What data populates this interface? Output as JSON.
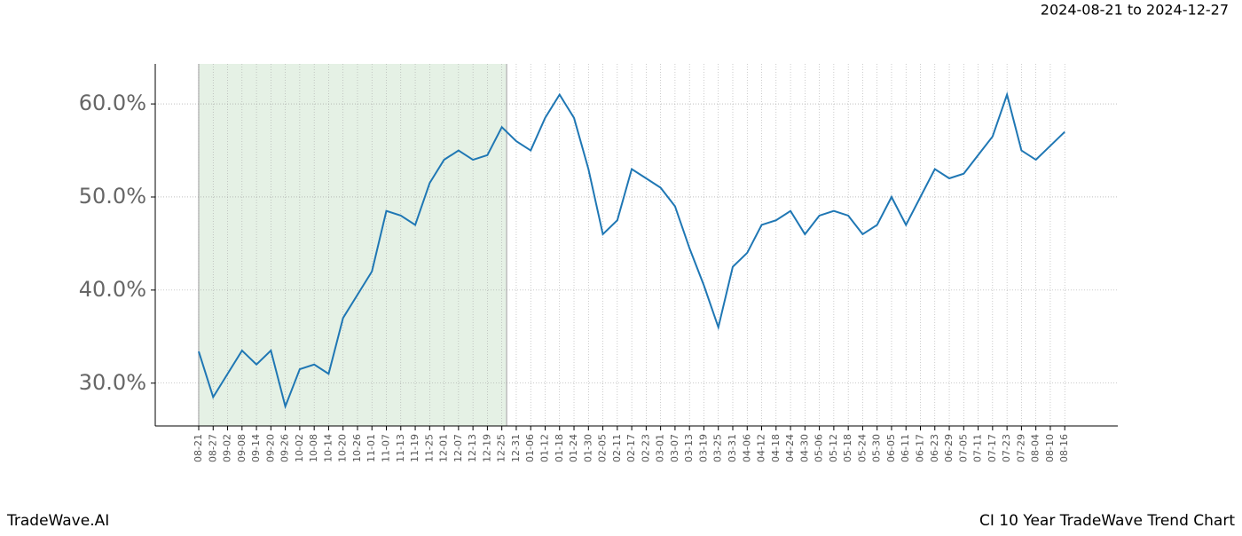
{
  "chart_data": {
    "type": "line",
    "title": "CI 10 Year TradeWave Trend Chart",
    "brand": "TradeWave.AI",
    "date_range": "2024-08-21 to 2024-12-27",
    "categories": [
      "08-21",
      "08-27",
      "09-02",
      "09-08",
      "09-14",
      "09-20",
      "09-26",
      "10-02",
      "10-08",
      "10-14",
      "10-20",
      "10-26",
      "11-01",
      "11-07",
      "11-13",
      "11-19",
      "11-25",
      "12-01",
      "12-07",
      "12-13",
      "12-19",
      "12-25",
      "12-31",
      "01-06",
      "01-12",
      "01-18",
      "01-24",
      "01-30",
      "02-05",
      "02-11",
      "02-17",
      "02-23",
      "03-01",
      "03-07",
      "03-13",
      "03-19",
      "03-25",
      "03-31",
      "04-06",
      "04-12",
      "04-18",
      "04-24",
      "04-30",
      "05-06",
      "05-12",
      "05-18",
      "05-24",
      "05-30",
      "06-05",
      "06-11",
      "06-17",
      "06-23",
      "06-29",
      "07-05",
      "07-11",
      "07-17",
      "07-23",
      "07-29",
      "08-04",
      "08-10",
      "08-16"
    ],
    "series": [
      {
        "color": "#1f77b4",
        "values": [
          33.4,
          28.5,
          31,
          33.5,
          32,
          33.5,
          27.5,
          31.5,
          32,
          31,
          37,
          39.5,
          42,
          48.5,
          48,
          47,
          51.5,
          54,
          55,
          54,
          54.5,
          57.5,
          56,
          55,
          58.5,
          61,
          58.5,
          53,
          46,
          47.5,
          53,
          52,
          51,
          49,
          44.5,
          40.5,
          36,
          42.5,
          44,
          47,
          47.5,
          48.5,
          46,
          48,
          48.5,
          48,
          46,
          47,
          50,
          47,
          50,
          53,
          52,
          52.5,
          54.5,
          56.5,
          61,
          55,
          54,
          55.5,
          57
        ]
      }
    ],
    "ylim": [
      25.4,
      64.3
    ],
    "yticks": [
      {
        "value": 30,
        "label": "30.0%"
      },
      {
        "value": 40,
        "label": "40.0%"
      },
      {
        "value": 50,
        "label": "50.0%"
      },
      {
        "value": 60,
        "label": "60.0%"
      }
    ],
    "grid": true,
    "highlight_color": "#e5f1e5"
  }
}
